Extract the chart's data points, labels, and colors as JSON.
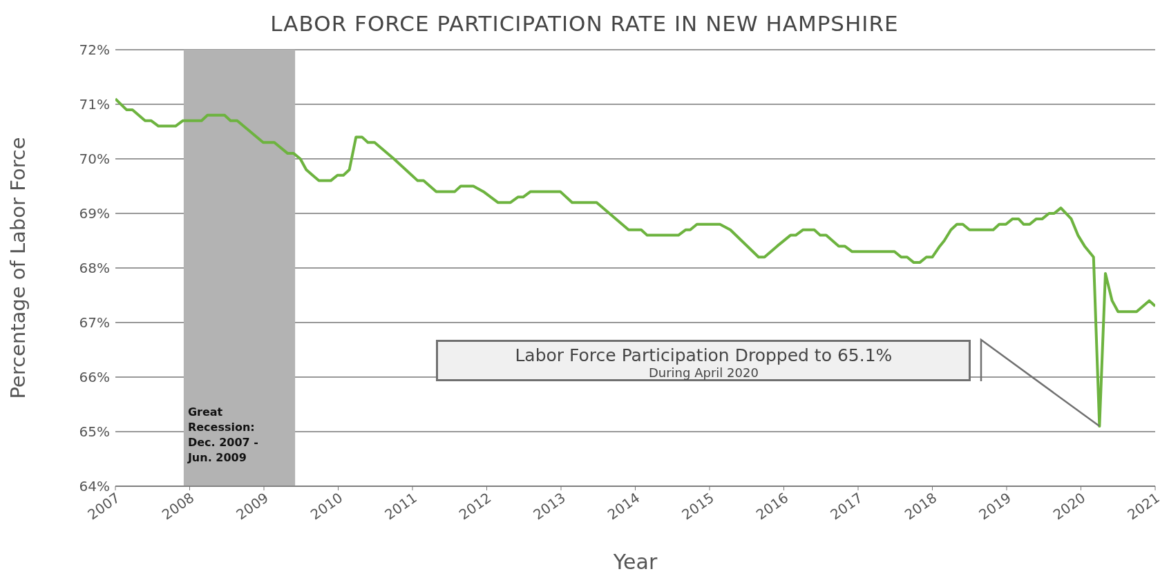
{
  "chart_data": {
    "type": "line",
    "title": "LABOR FORCE PARTICIPATION RATE IN NEW HAMPSHIRE",
    "xlabel": "Year",
    "ylabel": "Percentage of Labor Force",
    "x": [
      2007.0,
      2007.15,
      2007.23,
      2007.4,
      2007.48,
      2007.58,
      2007.81,
      2007.91,
      2008.16,
      2008.24,
      2008.47,
      2008.55,
      2008.64,
      2008.99,
      2009.14,
      2009.32,
      2009.4,
      2009.49,
      2009.57,
      2009.74,
      2009.9,
      2009.99,
      2010.07,
      2010.15,
      2010.24,
      2010.32,
      2010.4,
      2010.49,
      2010.75,
      2011.07,
      2011.15,
      2011.32,
      2011.57,
      2011.65,
      2011.82,
      2011.955,
      2012.15,
      2012.32,
      2012.42,
      2012.49,
      2012.59,
      2012.99,
      2013.15,
      2013.48,
      2013.91,
      2014.08,
      2014.16,
      2014.58,
      2014.68,
      2014.74,
      2014.83,
      2015.14,
      2015.28,
      2015.66,
      2015.74,
      2015.91,
      2016.09,
      2016.16,
      2016.26,
      2016.41,
      2016.49,
      2016.57,
      2016.74,
      2016.82,
      2016.92,
      2017.49,
      2017.58,
      2017.66,
      2017.75,
      2017.83,
      2017.92,
      2018.0,
      2018.1,
      2018.16,
      2018.25,
      2018.33,
      2018.41,
      2018.5,
      2018.82,
      2018.9,
      2018.99,
      2019.08,
      2019.16,
      2019.23,
      2019.31,
      2019.4,
      2019.48,
      2019.57,
      2019.64,
      2019.73,
      2019.87,
      2019.96,
      2020.05,
      2020.17,
      2020.25,
      2020.33,
      2020.42,
      2020.5,
      2020.75,
      2020.92,
      2021.0
    ],
    "series": [
      {
        "color": "#6db33f",
        "values": [
          71.1,
          70.9,
          70.9,
          70.7,
          70.7,
          70.6,
          70.6,
          70.7,
          70.7,
          70.8,
          70.8,
          70.7,
          70.7,
          70.3,
          70.3,
          70.1,
          70.1,
          70.0,
          69.8,
          69.6,
          69.6,
          69.7,
          69.7,
          69.8,
          70.4,
          70.4,
          70.3,
          70.3,
          70.0,
          69.6,
          69.6,
          69.4,
          69.4,
          69.5,
          69.5,
          69.4,
          69.2,
          69.2,
          69.3,
          69.3,
          69.4,
          69.4,
          69.2,
          69.2,
          68.7,
          68.7,
          68.6,
          68.6,
          68.7,
          68.7,
          68.8,
          68.8,
          68.7,
          68.2,
          68.2,
          68.4,
          68.6,
          68.6,
          68.7,
          68.7,
          68.6,
          68.6,
          68.4,
          68.4,
          68.3,
          68.3,
          68.2,
          68.2,
          68.1,
          68.1,
          68.2,
          68.2,
          68.4,
          68.5,
          68.7,
          68.8,
          68.8,
          68.7,
          68.7,
          68.8,
          68.8,
          68.9,
          68.9,
          68.8,
          68.8,
          68.9,
          68.9,
          69.0,
          69.0,
          69.1,
          68.9,
          68.6,
          68.4,
          68.2,
          65.1,
          67.9,
          67.4,
          67.2,
          67.2,
          67.4,
          67.3
        ]
      }
    ],
    "xlim": [
      2007,
      2021
    ],
    "xticks": [
      2007,
      2008,
      2009,
      2010,
      2011,
      2012,
      2013,
      2014,
      2015,
      2016,
      2017,
      2018,
      2019,
      2020,
      2021
    ],
    "ylim": [
      64,
      72
    ],
    "yticks": [
      {
        "value": 64,
        "label": "64%"
      },
      {
        "value": 65,
        "label": "65%"
      },
      {
        "value": 66,
        "label": "66%"
      },
      {
        "value": 67,
        "label": "67%"
      },
      {
        "value": 68,
        "label": "68%"
      },
      {
        "value": 69,
        "label": "69%"
      },
      {
        "value": 70,
        "label": "70%"
      },
      {
        "value": 71,
        "label": "71%"
      },
      {
        "value": 72,
        "label": "72%"
      }
    ],
    "grid": "y",
    "legend": false,
    "marker": "none",
    "line_style": "solid",
    "bands": [
      {
        "axis": "x",
        "from": 2007.92,
        "to": 2009.42,
        "label": "Great Recession: Dec. 2007 - Jun. 2009",
        "color": "#b3b3b3"
      }
    ],
    "annotations": [
      "Labor Force Participation Dropped to 65.1%",
      "During April 2020"
    ]
  }
}
